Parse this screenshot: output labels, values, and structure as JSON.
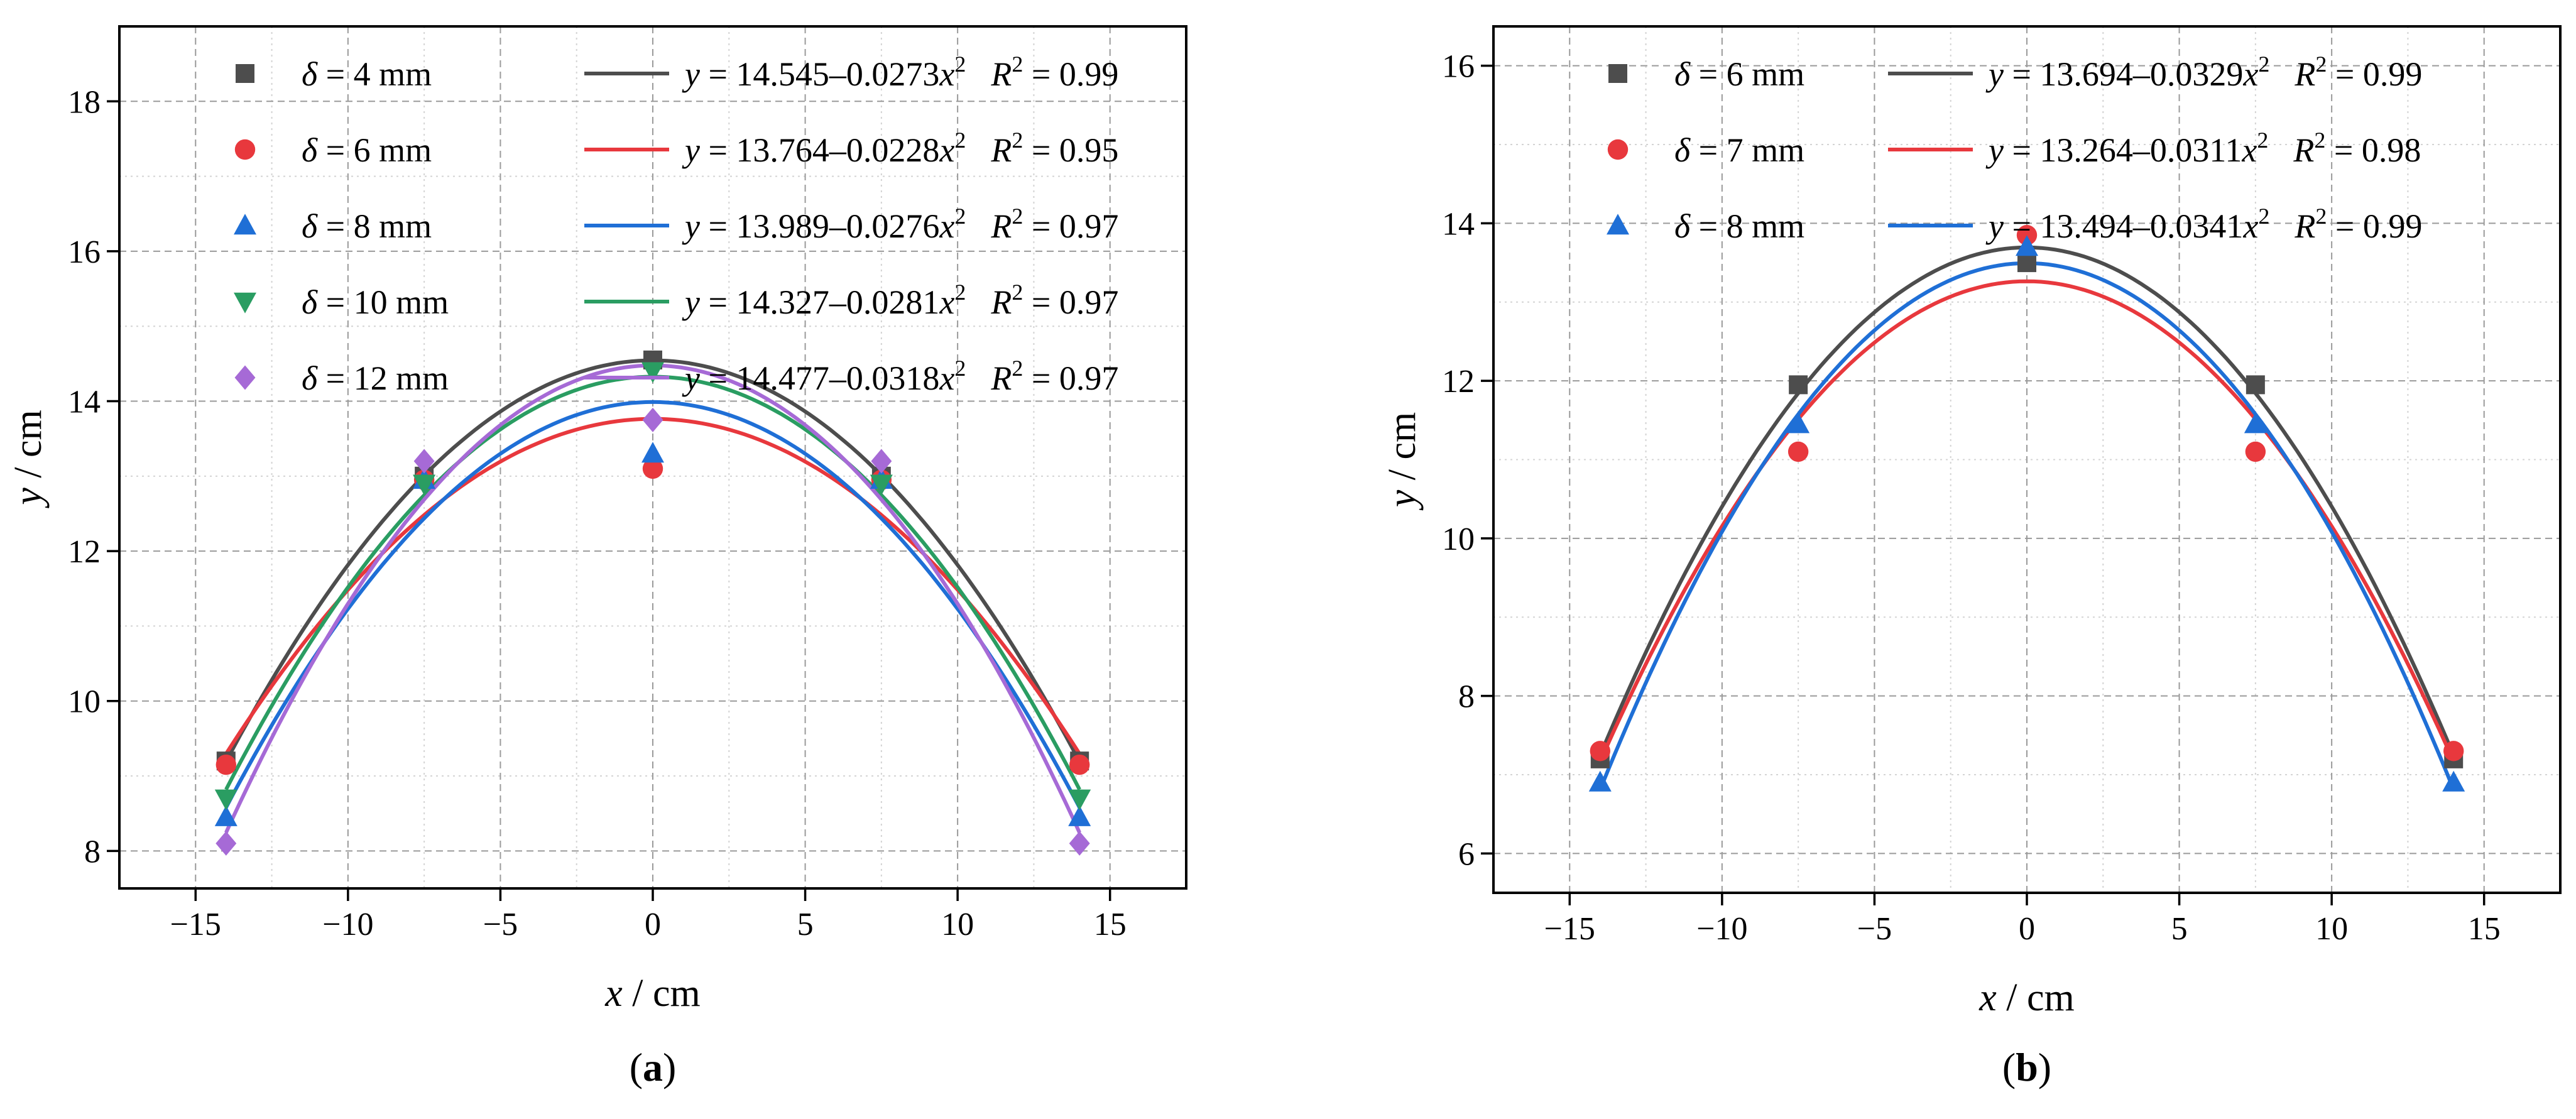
{
  "chart_data": [
    {
      "type": "scatter",
      "panel": "(a)",
      "panel_letter": "a",
      "xlabel": {
        "var": "x",
        "sep": "  /  ",
        "unit": "cm"
      },
      "ylabel": {
        "var": "y",
        "sep": "  /  ",
        "unit": "cm"
      },
      "xlim": [
        -17.5,
        17.5
      ],
      "ylim": [
        7.5,
        19
      ],
      "xticks": [
        -15,
        -10,
        -5,
        0,
        5,
        10,
        15
      ],
      "xtick_labels": [
        "−15",
        "−10",
        "−5",
        "0",
        "5",
        "10",
        "15"
      ],
      "yticks": [
        8,
        10,
        12,
        14,
        16,
        18
      ],
      "ytick_labels": [
        "8",
        "10",
        "12",
        "14",
        "16",
        "18"
      ],
      "grid": true,
      "legend_position": "top",
      "series": [
        {
          "name": "δ = 4 mm",
          "delta_sym": "δ",
          "delta_val": " = 4 mm",
          "marker": "square",
          "color": "#4d4d4d",
          "x": [
            -14,
            -7.5,
            0,
            7.5,
            14
          ],
          "y": [
            9.2,
            13.0,
            14.55,
            13.0,
            9.2
          ],
          "fit": {
            "a": 14.545,
            "b": 0.0273,
            "eq_const": " = 14.545–0.0273",
            "r2_value": " = 0.99"
          }
        },
        {
          "name": "δ = 6 mm",
          "delta_sym": "δ",
          "delta_val": " = 6 mm",
          "marker": "circle",
          "color": "#e8383d",
          "x": [
            -14,
            -7.5,
            0,
            7.5,
            14
          ],
          "y": [
            9.15,
            12.95,
            13.1,
            12.95,
            9.15
          ],
          "fit": {
            "a": 13.764,
            "b": 0.0228,
            "eq_const": " = 13.764–0.0228",
            "r2_value": " = 0.95"
          }
        },
        {
          "name": "δ = 8 mm",
          "delta_sym": "δ",
          "delta_val": " = 8 mm",
          "marker": "triangle-up",
          "color": "#1f6fd6",
          "x": [
            -14,
            -7.5,
            0,
            7.5,
            14
          ],
          "y": [
            8.45,
            12.95,
            13.3,
            12.95,
            8.45
          ],
          "fit": {
            "a": 13.989,
            "b": 0.0276,
            "eq_const": " = 13.989–0.0276",
            "r2_value": " = 0.97"
          }
        },
        {
          "name": "δ = 10 mm",
          "delta_sym": "δ",
          "delta_val": " = 10 mm",
          "marker": "triangle-down",
          "color": "#2a9d62",
          "x": [
            -14,
            -7.5,
            0,
            7.5,
            14
          ],
          "y": [
            8.7,
            12.9,
            14.4,
            12.9,
            8.7
          ],
          "fit": {
            "a": 14.327,
            "b": 0.0281,
            "eq_const": " = 14.327–0.0281",
            "r2_value": " = 0.97"
          }
        },
        {
          "name": "δ = 12 mm",
          "delta_sym": "δ",
          "delta_val": " = 12 mm",
          "marker": "diamond",
          "color": "#a66ad6",
          "x": [
            -14,
            -7.5,
            0,
            7.5,
            14
          ],
          "y": [
            8.1,
            13.2,
            13.75,
            13.2,
            8.1
          ],
          "fit": {
            "a": 14.477,
            "b": 0.0318,
            "eq_const": " = 14.477–0.0318",
            "r2_value": " = 0.97"
          }
        }
      ]
    },
    {
      "type": "scatter",
      "panel": "(b)",
      "panel_letter": "b",
      "xlabel": {
        "var": "x",
        "sep": "  /  ",
        "unit": "cm"
      },
      "ylabel": {
        "var": "y",
        "sep": "  /  ",
        "unit": "cm"
      },
      "xlim": [
        -17.5,
        17.5
      ],
      "ylim": [
        5.5,
        16.5
      ],
      "xticks": [
        -15,
        -10,
        -5,
        0,
        5,
        10,
        15
      ],
      "xtick_labels": [
        "−15",
        "−10",
        "−5",
        "0",
        "5",
        "10",
        "15"
      ],
      "yticks": [
        6,
        8,
        10,
        12,
        14,
        16
      ],
      "ytick_labels": [
        "6",
        "8",
        "10",
        "12",
        "14",
        "16"
      ],
      "grid": true,
      "legend_position": "top",
      "series": [
        {
          "name": "δ = 6 mm",
          "delta_sym": "δ",
          "delta_val": " = 6 mm",
          "marker": "square",
          "color": "#4d4d4d",
          "x": [
            -14,
            -7.5,
            0,
            7.5,
            14
          ],
          "y": [
            7.2,
            11.95,
            13.5,
            11.95,
            7.2
          ],
          "fit": {
            "a": 13.694,
            "b": 0.0329,
            "eq_const": " = 13.694–0.0329",
            "r2_value": " = 0.99"
          }
        },
        {
          "name": "δ = 7 mm",
          "delta_sym": "δ",
          "delta_val": " = 7 mm",
          "marker": "circle",
          "color": "#e8383d",
          "x": [
            -14,
            -7.5,
            0,
            7.5,
            14
          ],
          "y": [
            7.3,
            11.1,
            13.85,
            11.1,
            7.3
          ],
          "fit": {
            "a": 13.264,
            "b": 0.0311,
            "eq_const": " = 13.264–0.0311",
            "r2_value": " = 0.98"
          }
        },
        {
          "name": "δ = 8 mm",
          "delta_sym": "δ",
          "delta_val": " = 8 mm",
          "marker": "triangle-up",
          "color": "#1f6fd6",
          "x": [
            -14,
            -7.5,
            0,
            7.5,
            14
          ],
          "y": [
            6.9,
            11.45,
            13.7,
            11.45,
            6.9
          ],
          "fit": {
            "a": 13.494,
            "b": 0.0341,
            "eq_const": " = 13.494–0.0341",
            "r2_value": " = 0.99"
          }
        }
      ]
    }
  ],
  "legend_common": {
    "eq_var": "y",
    "eq_x": "x",
    "eq_exp": "2",
    "r2_var": "R",
    "r2_exp": "2"
  }
}
